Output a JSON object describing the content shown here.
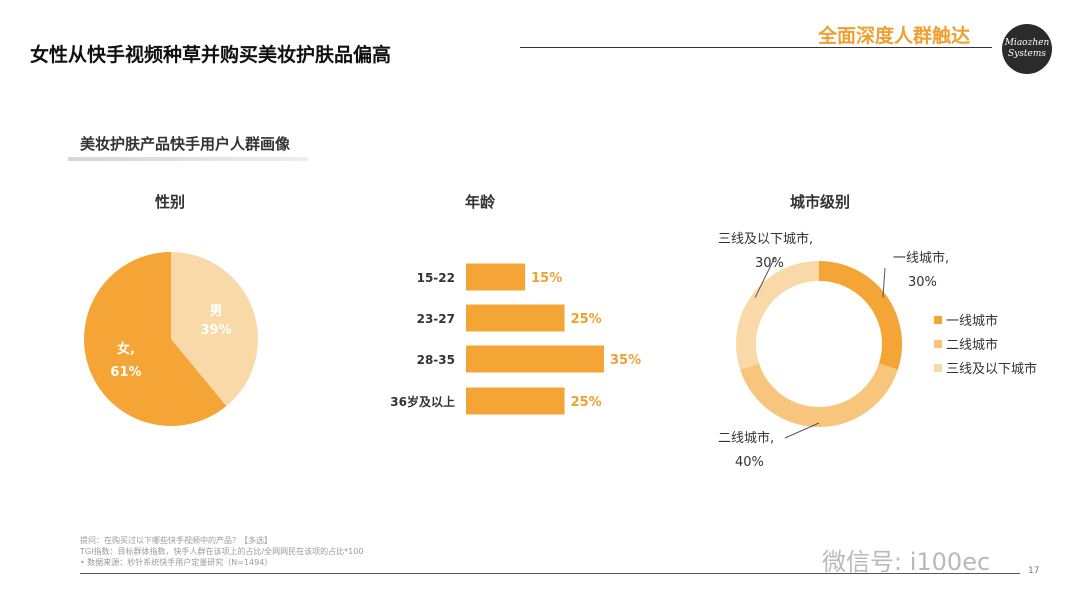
{
  "header": {
    "title": "女性从快手视频种草并购买美妆护肤品偏高",
    "tag": "全面深度人群触达",
    "logo_line1": "Miaozhen",
    "logo_line2": "Systems"
  },
  "section": {
    "title": "美妆护肤产品快手用户人群画像"
  },
  "colors": {
    "orange": "#f5a535",
    "mid_orange": "#f7c57c",
    "light_orange": "#fad9a8",
    "label_orange": "#f0a030"
  },
  "chart_data": [
    {
      "type": "pie",
      "title": "性别",
      "slices": [
        {
          "label": "女,",
          "value": 61,
          "display": "61%",
          "color": "#f5a535"
        },
        {
          "label": "男",
          "value": 39,
          "display": "39%",
          "color": "#fad9a8"
        }
      ]
    },
    {
      "type": "bar",
      "title": "年龄",
      "orientation": "horizontal",
      "categories": [
        "15-22",
        "23-27",
        "28-35",
        "36岁及以上"
      ],
      "values": [
        15,
        25,
        35,
        25
      ],
      "value_labels": [
        "15%",
        "25%",
        "35%",
        "25%"
      ]
    },
    {
      "type": "pie",
      "subtype": "donut",
      "title": "城市级别",
      "slices": [
        {
          "label": "一线城市,",
          "value": 30,
          "display": "30%",
          "color": "#f5a535"
        },
        {
          "label": "二线城市,",
          "value": 40,
          "display": "40%",
          "color": "#f7c57c"
        },
        {
          "label": "三线及以下城市,",
          "value": 30,
          "display": "30%",
          "color": "#fad9a8"
        }
      ],
      "legend": [
        "一线城市",
        "二线城市",
        "三线及以下城市"
      ],
      "legend_position": "right"
    }
  ],
  "footnotes": [
    "提问：在购买过以下哪些快手视频中的产品？【多选】",
    "TGI指数：目标群体指数，快手人群在该项上的占比/全网网民在该项的占比*100",
    "•    数据来源：秒针系统快手用户定量研究（N=1494）"
  ],
  "watermark": "微信号: i100ec",
  "page_number": "17"
}
